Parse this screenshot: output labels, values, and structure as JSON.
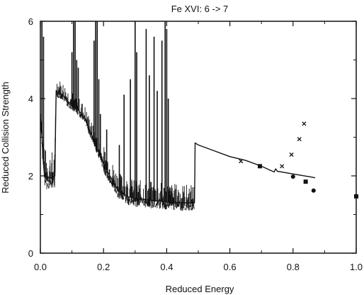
{
  "chart_data": {
    "type": "line",
    "title": "Fe XVI: 6 -> 7",
    "xlabel": "Reduced Energy",
    "ylabel": "Reduced Collision Strength",
    "xlim": [
      0.0,
      1.0
    ],
    "ylim": [
      0,
      6
    ],
    "xticks": [
      0.0,
      0.2,
      0.4,
      0.6,
      0.8,
      1.0
    ],
    "xtick_labels": [
      "0.0",
      "0.2",
      "0.4",
      "0.6",
      "0.8",
      "1.0"
    ],
    "yticks": [
      0,
      2,
      4,
      6
    ],
    "ytick_labels": [
      "0",
      "2",
      "4",
      "6"
    ],
    "grid": false,
    "legend": "none",
    "series": [
      {
        "style": "line",
        "x": [
          0.0,
          0.004,
          0.008,
          0.012,
          0.016,
          0.02,
          0.03,
          0.04,
          0.046,
          0.048,
          0.05,
          0.06,
          0.07,
          0.08,
          0.09,
          0.1,
          0.11,
          0.12,
          0.13,
          0.14,
          0.15,
          0.16,
          0.17,
          0.18,
          0.19,
          0.2,
          0.21,
          0.22,
          0.23,
          0.24,
          0.25,
          0.26,
          0.27,
          0.28,
          0.29,
          0.3,
          0.32,
          0.34,
          0.36,
          0.38,
          0.4,
          0.42,
          0.44,
          0.46,
          0.48,
          0.488,
          0.489,
          0.49,
          0.5,
          0.55,
          0.6,
          0.65,
          0.7,
          0.74,
          0.745,
          0.75,
          0.8,
          0.85,
          0.87
        ],
        "y": [
          3.5,
          3.2,
          2.5,
          2.1,
          2.0,
          1.95,
          1.95,
          1.95,
          2.0,
          3.2,
          4.2,
          4.15,
          4.1,
          4.0,
          3.9,
          3.85,
          3.8,
          3.7,
          3.6,
          3.5,
          3.3,
          3.1,
          2.9,
          2.7,
          2.5,
          2.3,
          2.15,
          2.0,
          1.85,
          1.7,
          1.6,
          1.55,
          1.5,
          1.45,
          1.45,
          1.4,
          1.4,
          1.38,
          1.36,
          1.35,
          1.33,
          1.32,
          1.31,
          1.3,
          1.3,
          1.3,
          2.0,
          2.85,
          2.8,
          2.65,
          2.5,
          2.4,
          2.25,
          2.1,
          2.18,
          2.12,
          2.05,
          1.98,
          1.95
        ]
      },
      {
        "style": "markers-cross",
        "x": [
          0.635,
          0.765,
          0.795,
          0.82,
          0.835
        ],
        "y": [
          2.38,
          2.25,
          2.55,
          2.95,
          3.35
        ]
      },
      {
        "style": "markers-filled",
        "x": [
          0.695,
          0.8,
          0.84,
          0.865,
          1.0
        ],
        "y": [
          2.25,
          1.98,
          1.85,
          1.62,
          1.47
        ]
      }
    ],
    "resonance_spikes": {
      "x": [
        0.005,
        0.01,
        0.1,
        0.105,
        0.11,
        0.115,
        0.12,
        0.17,
        0.175,
        0.18,
        0.185,
        0.19,
        0.21,
        0.25,
        0.265,
        0.285,
        0.3,
        0.305,
        0.335,
        0.345,
        0.36,
        0.37,
        0.385,
        0.395,
        0.4,
        0.405
      ],
      "y_peak": [
        6.0,
        5.6,
        5.2,
        6.0,
        6.0,
        5.0,
        4.8,
        5.5,
        6.0,
        6.0,
        4.5,
        3.6,
        3.2,
        2.8,
        4.1,
        4.5,
        6.0,
        5.2,
        5.8,
        4.6,
        5.6,
        4.2,
        5.5,
        6.0,
        5.8,
        4.0
      ]
    }
  }
}
